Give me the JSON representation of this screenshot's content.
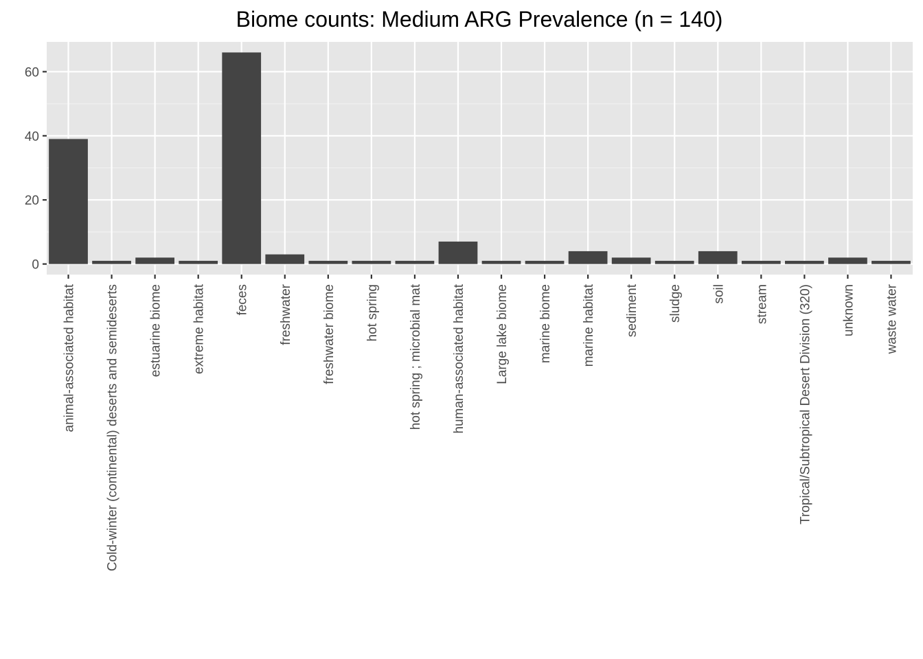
{
  "chart_data": {
    "type": "bar",
    "title": "Biome counts: Medium ARG Prevalence (n = 140)",
    "xlabel": "",
    "ylabel": "",
    "categories": [
      "animal-associated habitat",
      "Cold-winter (continental) deserts and semideserts",
      "estuarine biome",
      "extreme habitat",
      "feces",
      "freshwater",
      "freshwater biome",
      "hot spring",
      "hot spring ; microbial mat",
      "human-associated habitat",
      "Large lake biome",
      "marine biome",
      "marine habitat",
      "sediment",
      "sludge",
      "soil",
      "stream",
      "Tropical/Subtropical Desert Division (320)",
      "unknown",
      "waste water"
    ],
    "values": [
      39,
      1,
      2,
      1,
      66,
      3,
      1,
      1,
      1,
      7,
      1,
      1,
      4,
      2,
      1,
      4,
      1,
      1,
      2,
      1
    ],
    "ylim": [
      -3.3,
      69.3
    ],
    "yticks": [
      0,
      20,
      40,
      60
    ],
    "grid": true,
    "legend": "none",
    "colors": {
      "bar": "#444444",
      "panel": "#e6e6e6",
      "grid_major": "#ffffff",
      "grid_minor": "#f2f2f2"
    }
  }
}
